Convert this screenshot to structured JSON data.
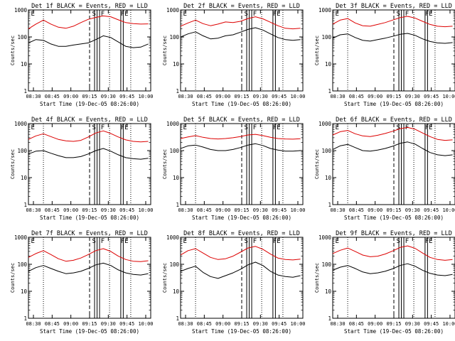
{
  "colors": {
    "events": "#000000",
    "lld": "#dd0000"
  },
  "chart_data": [
    {
      "type": "line",
      "title": "Det 1f BLACK = Events, RED = LLD",
      "xlabel": "Start Time (19-Dec-05 08:26:00)",
      "ylabel": "Counts/sec",
      "yscale": "log",
      "ylim": [
        1,
        1000
      ],
      "ytick_labels": [
        "1",
        "10",
        "100",
        "1000"
      ],
      "xlim": [
        "08:26",
        "10:04"
      ],
      "xtick_labels": [
        "08:30",
        "08:45",
        "09:00",
        "09:15",
        "09:30",
        "09:45",
        "10:00"
      ],
      "markers": [
        "E",
        "S",
        "F",
        "F",
        "E"
      ],
      "series": [
        {
          "name": "LLD",
          "x": [
            "08:26",
            "08:32",
            "08:38",
            "08:44",
            "08:50",
            "08:56",
            "09:02",
            "09:08",
            "09:14",
            "09:20",
            "09:26",
            "09:32",
            "09:38",
            "09:44",
            "09:50",
            "09:56",
            "10:02"
          ],
          "values": [
            200,
            300,
            420,
            300,
            230,
            210,
            250,
            340,
            450,
            530,
            600,
            560,
            430,
            340,
            310,
            300,
            305
          ]
        },
        {
          "name": "Events",
          "x": [
            "08:26",
            "08:32",
            "08:38",
            "08:44",
            "08:50",
            "08:56",
            "09:02",
            "09:08",
            "09:14",
            "09:20",
            "09:26",
            "09:32",
            "09:38",
            "09:44",
            "09:50",
            "09:56",
            "10:02"
          ],
          "values": [
            60,
            80,
            75,
            55,
            45,
            45,
            50,
            55,
            60,
            80,
            110,
            95,
            65,
            45,
            40,
            42,
            55
          ]
        }
      ]
    },
    {
      "type": "line",
      "title": "Det 2f BLACK = Events, RED = LLD",
      "xlabel": "Start Time (19-Dec-05 08:26:00)",
      "ylabel": "Counts/sec",
      "yscale": "log",
      "ylim": [
        1,
        1000
      ],
      "ytick_labels": [
        "1",
        "10",
        "100",
        "1000"
      ],
      "xlim": [
        "08:26",
        "10:04"
      ],
      "xtick_labels": [
        "08:30",
        "08:45",
        "09:00",
        "09:15",
        "09:30",
        "09:45",
        "10:00"
      ],
      "markers": [
        "E",
        "S",
        "F",
        "F",
        "E"
      ],
      "series": [
        {
          "name": "LLD",
          "x": [
            "08:26",
            "08:32",
            "08:38",
            "08:44",
            "08:50",
            "08:56",
            "09:02",
            "09:08",
            "09:14",
            "09:20",
            "09:26",
            "09:32",
            "09:38",
            "09:44",
            "09:50",
            "09:56",
            "10:02"
          ],
          "values": [
            250,
            330,
            420,
            310,
            260,
            300,
            360,
            340,
            380,
            480,
            560,
            470,
            350,
            260,
            210,
            200,
            210
          ]
        },
        {
          "name": "Events",
          "x": [
            "08:26",
            "08:32",
            "08:38",
            "08:44",
            "08:50",
            "08:56",
            "09:02",
            "09:08",
            "09:14",
            "09:20",
            "09:26",
            "09:32",
            "09:38",
            "09:44",
            "09:50",
            "09:56",
            "10:02"
          ],
          "values": [
            100,
            130,
            155,
            110,
            85,
            90,
            110,
            120,
            150,
            190,
            220,
            180,
            130,
            95,
            80,
            75,
            80
          ]
        }
      ]
    },
    {
      "type": "line",
      "title": "Det 3f BLACK = Events, RED = LLD",
      "xlabel": "Start Time (19-Dec-05 08:26:00)",
      "ylabel": "Counts/sec",
      "yscale": "log",
      "ylim": [
        1,
        1000
      ],
      "ytick_labels": [
        "1",
        "10",
        "100",
        "1000"
      ],
      "xlim": [
        "08:26",
        "10:04"
      ],
      "xtick_labels": [
        "08:30",
        "08:45",
        "09:00",
        "09:15",
        "09:30",
        "09:45",
        "10:00"
      ],
      "markers": [
        "E",
        "S",
        "F",
        "F",
        "E"
      ],
      "series": [
        {
          "name": "LLD",
          "x": [
            "08:26",
            "08:32",
            "08:38",
            "08:44",
            "08:50",
            "08:56",
            "09:02",
            "09:08",
            "09:14",
            "09:20",
            "09:26",
            "09:32",
            "09:38",
            "09:44",
            "09:50",
            "09:56",
            "10:02"
          ],
          "values": [
            300,
            420,
            480,
            330,
            260,
            250,
            290,
            340,
            420,
            520,
            580,
            500,
            380,
            290,
            250,
            240,
            250
          ]
        },
        {
          "name": "Events",
          "x": [
            "08:26",
            "08:32",
            "08:38",
            "08:44",
            "08:50",
            "08:56",
            "09:02",
            "09:08",
            "09:14",
            "09:20",
            "09:26",
            "09:32",
            "09:38",
            "09:44",
            "09:50",
            "09:56",
            "10:02"
          ],
          "values": [
            90,
            120,
            130,
            95,
            75,
            70,
            80,
            90,
            105,
            125,
            135,
            115,
            85,
            68,
            60,
            58,
            62
          ]
        }
      ]
    },
    {
      "type": "line",
      "title": "Det 4f BLACK = Events, RED = LLD",
      "xlabel": "Start Time (19-Dec-05 08:26:00)",
      "ylabel": "Counts/sec",
      "yscale": "log",
      "ylim": [
        1,
        1000
      ],
      "ytick_labels": [
        "1",
        "10",
        "100",
        "1000"
      ],
      "xlim": [
        "08:26",
        "10:04"
      ],
      "xtick_labels": [
        "08:30",
        "08:45",
        "09:00",
        "09:15",
        "09:30",
        "09:45",
        "10:00"
      ],
      "markers": [
        "E",
        "S",
        "F",
        "F",
        "E"
      ],
      "series": [
        {
          "name": "LLD",
          "x": [
            "08:26",
            "08:32",
            "08:38",
            "08:44",
            "08:50",
            "08:56",
            "09:02",
            "09:08",
            "09:14",
            "09:20",
            "09:26",
            "09:32",
            "09:38",
            "09:44",
            "09:50",
            "09:56",
            "10:02"
          ],
          "values": [
            260,
            350,
            420,
            330,
            260,
            230,
            220,
            240,
            320,
            450,
            540,
            430,
            320,
            250,
            220,
            210,
            220
          ]
        },
        {
          "name": "Events",
          "x": [
            "08:26",
            "08:32",
            "08:38",
            "08:44",
            "08:50",
            "08:56",
            "09:02",
            "09:08",
            "09:14",
            "09:20",
            "09:26",
            "09:32",
            "09:38",
            "09:44",
            "09:50",
            "09:56",
            "10:02"
          ],
          "values": [
            75,
            95,
            100,
            80,
            65,
            55,
            55,
            60,
            75,
            100,
            120,
            95,
            70,
            55,
            50,
            48,
            52
          ]
        }
      ]
    },
    {
      "type": "line",
      "title": "Det 5f BLACK = Events, RED = LLD",
      "xlabel": "Start Time (19-Dec-05 08:26:00)",
      "ylabel": "Counts/sec",
      "yscale": "log",
      "ylim": [
        1,
        1000
      ],
      "ytick_labels": [
        "1",
        "10",
        "100",
        "1000"
      ],
      "xlim": [
        "08:26",
        "10:04"
      ],
      "xtick_labels": [
        "08:30",
        "08:45",
        "09:00",
        "09:15",
        "09:30",
        "09:45",
        "10:00"
      ],
      "markers": [
        "E",
        "S",
        "F",
        "F",
        "E"
      ],
      "series": [
        {
          "name": "LLD",
          "x": [
            "08:26",
            "08:32",
            "08:38",
            "08:44",
            "08:50",
            "08:56",
            "09:02",
            "09:08",
            "09:14",
            "09:20",
            "09:26",
            "09:32",
            "09:38",
            "09:44",
            "09:50",
            "09:56",
            "10:02"
          ],
          "values": [
            280,
            320,
            360,
            310,
            280,
            270,
            280,
            300,
            330,
            380,
            400,
            360,
            310,
            280,
            270,
            265,
            275
          ]
        },
        {
          "name": "Events",
          "x": [
            "08:26",
            "08:32",
            "08:38",
            "08:44",
            "08:50",
            "08:56",
            "09:02",
            "09:08",
            "09:14",
            "09:20",
            "09:26",
            "09:32",
            "09:38",
            "09:44",
            "09:50",
            "09:56",
            "10:02"
          ],
          "values": [
            120,
            150,
            160,
            135,
            110,
            100,
            100,
            110,
            130,
            160,
            180,
            155,
            120,
            105,
            95,
            95,
            100
          ]
        }
      ]
    },
    {
      "type": "line",
      "title": "Det 6f BLACK = Events, RED = LLD",
      "xlabel": "Start Time (19-Dec-05 08:26:00)",
      "ylabel": "Counts/sec",
      "yscale": "log",
      "ylim": [
        1,
        1000
      ],
      "ytick_labels": [
        "1",
        "10",
        "100",
        "1000"
      ],
      "xlim": [
        "08:26",
        "10:04"
      ],
      "xtick_labels": [
        "08:30",
        "08:45",
        "09:00",
        "09:15",
        "09:30",
        "09:45",
        "10:00"
      ],
      "markers": [
        "E",
        "S",
        "F",
        "F",
        "E"
      ],
      "series": [
        {
          "name": "LLD",
          "x": [
            "08:26",
            "08:32",
            "08:38",
            "08:44",
            "08:50",
            "08:56",
            "09:02",
            "09:08",
            "09:14",
            "09:20",
            "09:26",
            "09:32",
            "09:38",
            "09:44",
            "09:50",
            "09:56",
            "10:02"
          ],
          "values": [
            380,
            500,
            560,
            420,
            350,
            330,
            370,
            430,
            520,
            650,
            720,
            620,
            450,
            330,
            260,
            240,
            250
          ]
        },
        {
          "name": "Events",
          "x": [
            "08:26",
            "08:32",
            "08:38",
            "08:44",
            "08:50",
            "08:56",
            "09:02",
            "09:08",
            "09:14",
            "09:20",
            "09:26",
            "09:32",
            "09:38",
            "09:44",
            "09:50",
            "09:56",
            "10:02"
          ],
          "values": [
            110,
            150,
            170,
            130,
            100,
            95,
            105,
            120,
            145,
            185,
            210,
            175,
            120,
            85,
            70,
            65,
            70
          ]
        }
      ]
    },
    {
      "type": "line",
      "title": "Det 7f BLACK = Events, RED = LLD",
      "xlabel": "Start Time (19-Dec-05 08:26:00)",
      "ylabel": "Counts/sec",
      "yscale": "log",
      "ylim": [
        1,
        1000
      ],
      "ytick_labels": [
        "1",
        "10",
        "100",
        "1000"
      ],
      "xlim": [
        "08:26",
        "10:04"
      ],
      "xtick_labels": [
        "08:30",
        "08:45",
        "09:00",
        "09:15",
        "09:30",
        "09:45",
        "10:00"
      ],
      "markers": [
        "E",
        "S",
        "F",
        "F",
        "E"
      ],
      "series": [
        {
          "name": "LLD",
          "x": [
            "08:26",
            "08:32",
            "08:38",
            "08:44",
            "08:50",
            "08:56",
            "09:02",
            "09:08",
            "09:14",
            "09:20",
            "09:26",
            "09:32",
            "09:38",
            "09:44",
            "09:50",
            "09:56",
            "10:02"
          ],
          "values": [
            180,
            250,
            320,
            230,
            160,
            130,
            140,
            170,
            230,
            320,
            380,
            300,
            200,
            150,
            130,
            125,
            135
          ]
        },
        {
          "name": "Events",
          "x": [
            "08:26",
            "08:32",
            "08:38",
            "08:44",
            "08:50",
            "08:56",
            "09:02",
            "09:08",
            "09:14",
            "09:20",
            "09:26",
            "09:32",
            "09:38",
            "09:44",
            "09:50",
            "09:56",
            "10:02"
          ],
          "values": [
            55,
            75,
            90,
            70,
            55,
            45,
            48,
            55,
            70,
            95,
            110,
            90,
            62,
            48,
            42,
            40,
            45
          ]
        }
      ]
    },
    {
      "type": "line",
      "title": "Det 8f BLACK = Events, RED = LLD",
      "xlabel": "Start Time (19-Dec-05 08:26:00)",
      "ylabel": "Counts/sec",
      "yscale": "log",
      "ylim": [
        1,
        1000
      ],
      "ytick_labels": [
        "1",
        "10",
        "100",
        "1000"
      ],
      "xlim": [
        "08:26",
        "10:04"
      ],
      "xtick_labels": [
        "08:30",
        "08:45",
        "09:00",
        "09:15",
        "09:30",
        "09:45",
        "10:00"
      ],
      "markers": [
        "E",
        "S",
        "F",
        "F",
        "E"
      ],
      "series": [
        {
          "name": "LLD",
          "x": [
            "08:26",
            "08:32",
            "08:38",
            "08:44",
            "08:50",
            "08:56",
            "09:02",
            "09:08",
            "09:14",
            "09:20",
            "09:26",
            "09:32",
            "09:38",
            "09:44",
            "09:50",
            "09:56",
            "10:02"
          ],
          "values": [
            220,
            320,
            380,
            260,
            180,
            150,
            160,
            200,
            280,
            400,
            460,
            360,
            240,
            170,
            150,
            145,
            155
          ]
        },
        {
          "name": "Events",
          "x": [
            "08:26",
            "08:32",
            "08:38",
            "08:44",
            "08:50",
            "08:56",
            "09:02",
            "09:08",
            "09:14",
            "09:20",
            "09:26",
            "09:32",
            "09:38",
            "09:44",
            "09:50",
            "09:56",
            "10:02"
          ],
          "values": [
            55,
            70,
            85,
            50,
            35,
            30,
            38,
            48,
            65,
            95,
            120,
            90,
            55,
            40,
            35,
            33,
            38
          ]
        }
      ]
    },
    {
      "type": "line",
      "title": "Det 9f BLACK = Events, RED = LLD",
      "xlabel": "Start Time (19-Dec-05 08:26:00)",
      "ylabel": "Counts/sec",
      "yscale": "log",
      "ylim": [
        1,
        1000
      ],
      "ytick_labels": [
        "1",
        "10",
        "100",
        "1000"
      ],
      "xlim": [
        "08:26",
        "10:04"
      ],
      "xtick_labels": [
        "08:30",
        "08:45",
        "09:00",
        "09:15",
        "09:30",
        "09:45",
        "10:00"
      ],
      "markers": [
        "E",
        "S",
        "F",
        "F",
        "E"
      ],
      "series": [
        {
          "name": "LLD",
          "x": [
            "08:26",
            "08:32",
            "08:38",
            "08:44",
            "08:50",
            "08:56",
            "09:02",
            "09:08",
            "09:14",
            "09:20",
            "09:26",
            "09:32",
            "09:38",
            "09:44",
            "09:50",
            "09:56",
            "10:02"
          ],
          "values": [
            250,
            330,
            400,
            300,
            220,
            190,
            200,
            240,
            310,
            420,
            480,
            390,
            260,
            180,
            150,
            140,
            150
          ]
        },
        {
          "name": "Events",
          "x": [
            "08:26",
            "08:32",
            "08:38",
            "08:44",
            "08:50",
            "08:56",
            "09:02",
            "09:08",
            "09:14",
            "09:20",
            "09:26",
            "09:32",
            "09:38",
            "09:44",
            "09:50",
            "09:56",
            "10:02"
          ],
          "values": [
            60,
            78,
            90,
            70,
            52,
            45,
            48,
            55,
            68,
            90,
            105,
            85,
            60,
            46,
            40,
            38,
            42
          ]
        }
      ]
    }
  ]
}
